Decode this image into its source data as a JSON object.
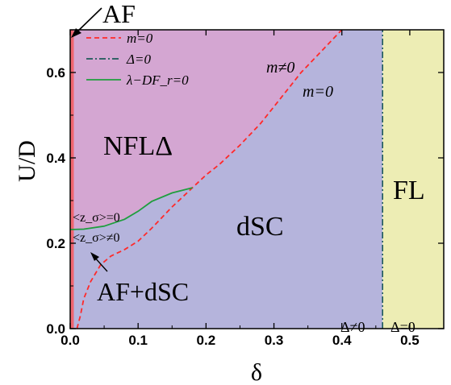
{
  "colors": {
    "region_nfl": "#d4a6d2",
    "region_dsc": "#b5b4dc",
    "region_fl": "#ededb4",
    "af_line": "#f06670",
    "m_line": "#ff2a2a",
    "delta_line": "#1e5a5a",
    "lambda_line": "#1f9e3e"
  },
  "legend": [
    {
      "label": "m=0",
      "style": "dashed",
      "color_key": "m_line"
    },
    {
      "label": "Δ=0",
      "style": "dashdot",
      "color_key": "delta_line"
    },
    {
      "label": "λ−DF_r=0",
      "style": "solid",
      "color_key": "lambda_line"
    }
  ],
  "labels": {
    "af": "AF",
    "nfl": "NFLΔ",
    "dsc": "dSC",
    "fl": "FL",
    "af_dsc": "AF+dSC",
    "m_ne_0": "m≠0",
    "m_eq_0": "m=0",
    "z_eq_0": "<z_σ>=0",
    "z_ne_0": "<z_σ>≠0",
    "delta_ne_0": "Δ≠0",
    "delta_eq_0": "Δ=0"
  },
  "chart_data": {
    "type": "line",
    "xlabel": "δ",
    "ylabel": "U/D",
    "xlim": [
      0,
      0.55
    ],
    "ylim": [
      0,
      0.7
    ],
    "xticks": [
      "0.0",
      "0.1",
      "0.2",
      "0.3",
      "0.4",
      "0.5"
    ],
    "yticks": [
      "0.0",
      "0.2",
      "0.4",
      "0.6"
    ],
    "legend_position": "top-left",
    "series": [
      {
        "name": "m=0",
        "style": "dashed",
        "x": [
          0.01,
          0.015,
          0.02,
          0.03,
          0.045,
          0.06,
          0.08,
          0.1,
          0.12,
          0.15,
          0.18,
          0.2,
          0.22,
          0.25,
          0.28,
          0.31,
          0.34,
          0.37,
          0.4
        ],
        "y": [
          0.0,
          0.03,
          0.07,
          0.11,
          0.15,
          0.17,
          0.185,
          0.205,
          0.235,
          0.285,
          0.33,
          0.36,
          0.385,
          0.43,
          0.48,
          0.54,
          0.6,
          0.65,
          0.7
        ]
      },
      {
        "name": "Δ=0",
        "style": "dashdot",
        "x": [
          0.46,
          0.46
        ],
        "y": [
          0.0,
          0.7
        ]
      },
      {
        "name": "λ−DF_r=0",
        "style": "solid",
        "x": [
          0.0,
          0.02,
          0.05,
          0.08,
          0.1,
          0.12,
          0.15,
          0.18
        ],
        "y": [
          0.232,
          0.233,
          0.24,
          0.256,
          0.275,
          0.298,
          0.318,
          0.33
        ]
      }
    ],
    "regions": [
      {
        "label": "NFLΔ"
      },
      {
        "label": "dSC"
      },
      {
        "label": "FL"
      },
      {
        "label": "AF"
      },
      {
        "label": "AF+dSC"
      }
    ]
  }
}
